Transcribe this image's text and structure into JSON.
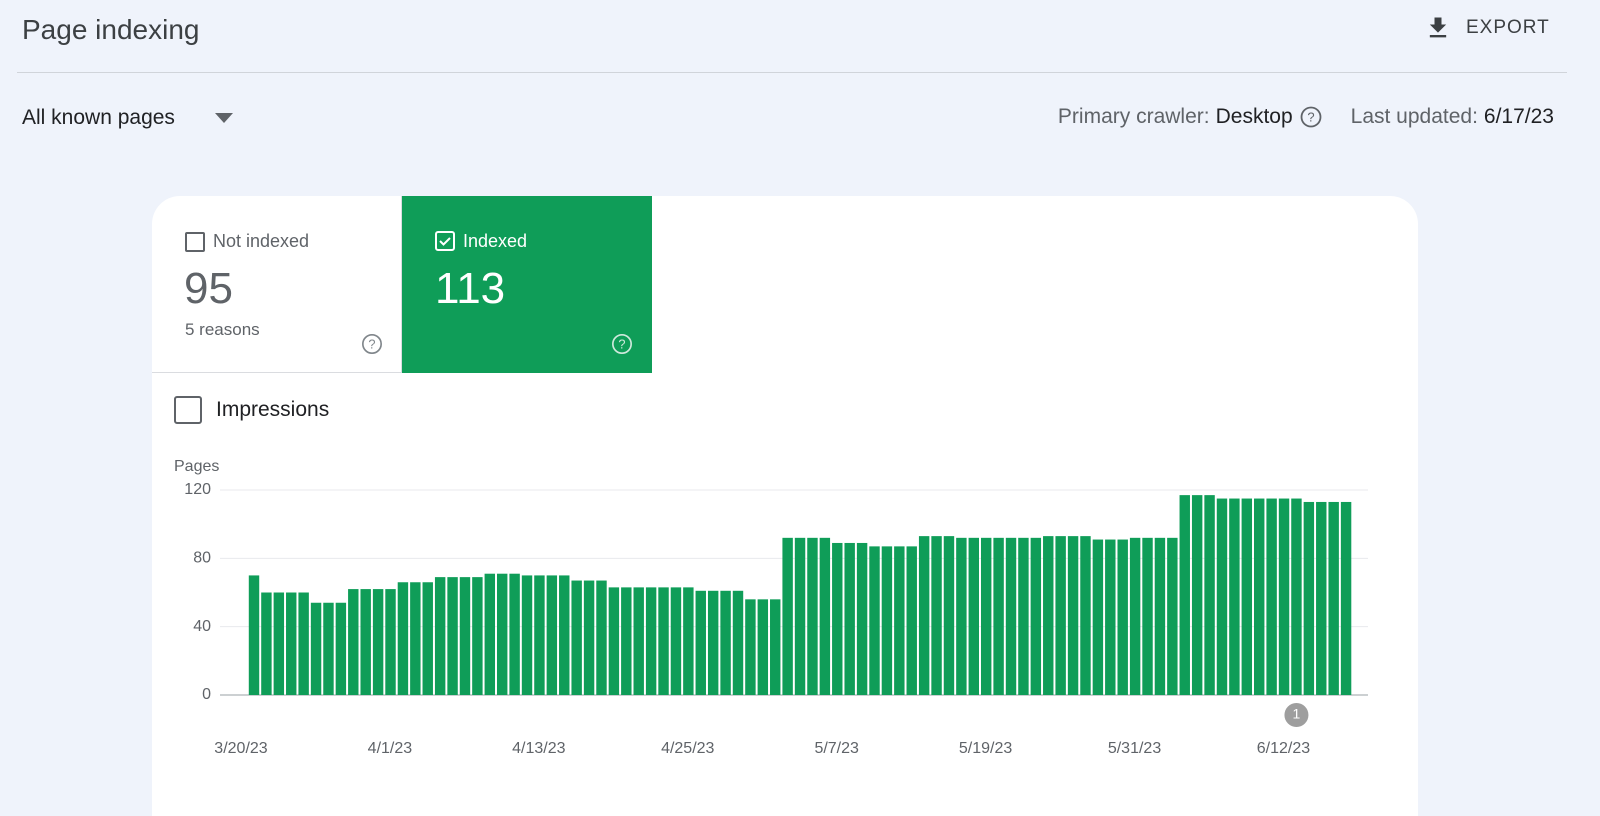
{
  "header": {
    "title": "Page indexing",
    "export": "EXPORT"
  },
  "filters": {
    "scope": "All known pages",
    "crawler_label": "Primary crawler:",
    "crawler": "Desktop",
    "updated_label": "Last updated:",
    "updated": "6/17/23"
  },
  "cards": [
    {
      "label": "Not indexed",
      "count": "95",
      "note": "5 reasons"
    },
    {
      "label": "Indexed",
      "count": "113"
    }
  ],
  "toggle": "Impressions",
  "chart_data": {
    "type": "bar",
    "y_label": "Pages",
    "color": "#0f9d58",
    "ylim": [
      0,
      120
    ],
    "yticks": [
      0,
      40,
      80,
      120
    ],
    "grid": true,
    "categories": [
      "3/20/23",
      null,
      null,
      null,
      null,
      null,
      null,
      null,
      null,
      null,
      null,
      null,
      "4/1/23",
      null,
      null,
      null,
      null,
      null,
      null,
      null,
      null,
      null,
      null,
      null,
      "4/13/23",
      null,
      null,
      null,
      null,
      null,
      null,
      null,
      null,
      null,
      null,
      null,
      "4/25/23",
      null,
      null,
      null,
      null,
      null,
      null,
      null,
      null,
      null,
      null,
      null,
      "5/7/23",
      null,
      null,
      null,
      null,
      null,
      null,
      null,
      null,
      null,
      null,
      null,
      "5/19/23",
      null,
      null,
      null,
      null,
      null,
      null,
      null,
      null,
      null,
      null,
      null,
      "5/31/23",
      null,
      null,
      null,
      null,
      null,
      null,
      null,
      null,
      null,
      null,
      null,
      "6/12/23",
      null,
      null,
      null,
      null
    ],
    "values": [
      70,
      60,
      60,
      60,
      60,
      54,
      54,
      54,
      62,
      62,
      62,
      62,
      66,
      66,
      66,
      69,
      69,
      69,
      69,
      71,
      71,
      71,
      70,
      70,
      70,
      70,
      67,
      67,
      67,
      63,
      63,
      63,
      63,
      63,
      63,
      63,
      61,
      61,
      61,
      61,
      56,
      56,
      56,
      92,
      92,
      92,
      92,
      89,
      89,
      89,
      87,
      87,
      87,
      87,
      93,
      93,
      93,
      92,
      92,
      92,
      92,
      92,
      92,
      92,
      93,
      93,
      93,
      93,
      91,
      91,
      91,
      92,
      92,
      92,
      92,
      117,
      117,
      117,
      115,
      115,
      115,
      115,
      115,
      115,
      115,
      113,
      113,
      113,
      113
    ],
    "annotations": [
      {
        "text": "1",
        "at": "6/12/23"
      }
    ]
  }
}
